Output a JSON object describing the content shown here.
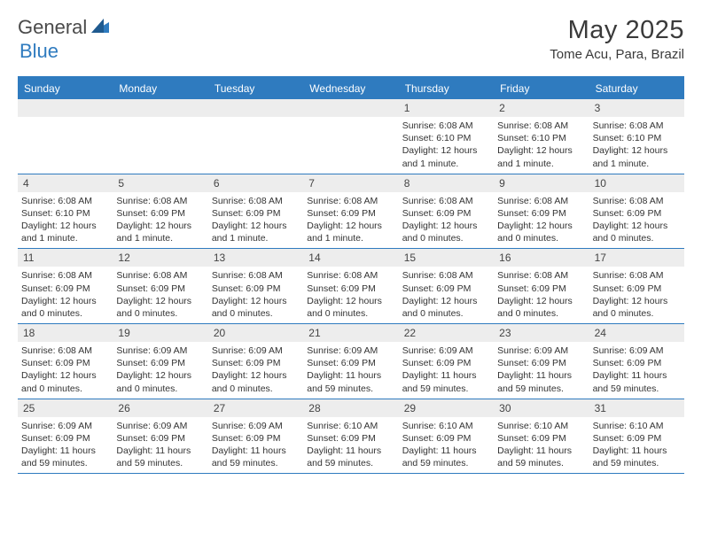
{
  "logo": {
    "text1": "General",
    "text2": "Blue",
    "color1": "#4a4a4a",
    "color2": "#2f7bbf"
  },
  "title": "May 2025",
  "location": "Tome Acu, Para, Brazil",
  "colors": {
    "header_bg": "#2f7bbf",
    "header_text": "#ffffff",
    "daynum_bg": "#ededed",
    "daynum_text": "#444444",
    "body_text": "#333333",
    "border": "#2f7bbf"
  },
  "fonts": {
    "title_size": 29,
    "location_size": 15,
    "dow_size": 12,
    "daynum_size": 12,
    "body_size": 10.5
  },
  "dow": [
    "Sunday",
    "Monday",
    "Tuesday",
    "Wednesday",
    "Thursday",
    "Friday",
    "Saturday"
  ],
  "weeks": [
    [
      {
        "n": "",
        "sunrise": "",
        "sunset": "",
        "daylight": ""
      },
      {
        "n": "",
        "sunrise": "",
        "sunset": "",
        "daylight": ""
      },
      {
        "n": "",
        "sunrise": "",
        "sunset": "",
        "daylight": ""
      },
      {
        "n": "",
        "sunrise": "",
        "sunset": "",
        "daylight": ""
      },
      {
        "n": "1",
        "sunrise": "Sunrise: 6:08 AM",
        "sunset": "Sunset: 6:10 PM",
        "daylight": "Daylight: 12 hours and 1 minute."
      },
      {
        "n": "2",
        "sunrise": "Sunrise: 6:08 AM",
        "sunset": "Sunset: 6:10 PM",
        "daylight": "Daylight: 12 hours and 1 minute."
      },
      {
        "n": "3",
        "sunrise": "Sunrise: 6:08 AM",
        "sunset": "Sunset: 6:10 PM",
        "daylight": "Daylight: 12 hours and 1 minute."
      }
    ],
    [
      {
        "n": "4",
        "sunrise": "Sunrise: 6:08 AM",
        "sunset": "Sunset: 6:10 PM",
        "daylight": "Daylight: 12 hours and 1 minute."
      },
      {
        "n": "5",
        "sunrise": "Sunrise: 6:08 AM",
        "sunset": "Sunset: 6:09 PM",
        "daylight": "Daylight: 12 hours and 1 minute."
      },
      {
        "n": "6",
        "sunrise": "Sunrise: 6:08 AM",
        "sunset": "Sunset: 6:09 PM",
        "daylight": "Daylight: 12 hours and 1 minute."
      },
      {
        "n": "7",
        "sunrise": "Sunrise: 6:08 AM",
        "sunset": "Sunset: 6:09 PM",
        "daylight": "Daylight: 12 hours and 1 minute."
      },
      {
        "n": "8",
        "sunrise": "Sunrise: 6:08 AM",
        "sunset": "Sunset: 6:09 PM",
        "daylight": "Daylight: 12 hours and 0 minutes."
      },
      {
        "n": "9",
        "sunrise": "Sunrise: 6:08 AM",
        "sunset": "Sunset: 6:09 PM",
        "daylight": "Daylight: 12 hours and 0 minutes."
      },
      {
        "n": "10",
        "sunrise": "Sunrise: 6:08 AM",
        "sunset": "Sunset: 6:09 PM",
        "daylight": "Daylight: 12 hours and 0 minutes."
      }
    ],
    [
      {
        "n": "11",
        "sunrise": "Sunrise: 6:08 AM",
        "sunset": "Sunset: 6:09 PM",
        "daylight": "Daylight: 12 hours and 0 minutes."
      },
      {
        "n": "12",
        "sunrise": "Sunrise: 6:08 AM",
        "sunset": "Sunset: 6:09 PM",
        "daylight": "Daylight: 12 hours and 0 minutes."
      },
      {
        "n": "13",
        "sunrise": "Sunrise: 6:08 AM",
        "sunset": "Sunset: 6:09 PM",
        "daylight": "Daylight: 12 hours and 0 minutes."
      },
      {
        "n": "14",
        "sunrise": "Sunrise: 6:08 AM",
        "sunset": "Sunset: 6:09 PM",
        "daylight": "Daylight: 12 hours and 0 minutes."
      },
      {
        "n": "15",
        "sunrise": "Sunrise: 6:08 AM",
        "sunset": "Sunset: 6:09 PM",
        "daylight": "Daylight: 12 hours and 0 minutes."
      },
      {
        "n": "16",
        "sunrise": "Sunrise: 6:08 AM",
        "sunset": "Sunset: 6:09 PM",
        "daylight": "Daylight: 12 hours and 0 minutes."
      },
      {
        "n": "17",
        "sunrise": "Sunrise: 6:08 AM",
        "sunset": "Sunset: 6:09 PM",
        "daylight": "Daylight: 12 hours and 0 minutes."
      }
    ],
    [
      {
        "n": "18",
        "sunrise": "Sunrise: 6:08 AM",
        "sunset": "Sunset: 6:09 PM",
        "daylight": "Daylight: 12 hours and 0 minutes."
      },
      {
        "n": "19",
        "sunrise": "Sunrise: 6:09 AM",
        "sunset": "Sunset: 6:09 PM",
        "daylight": "Daylight: 12 hours and 0 minutes."
      },
      {
        "n": "20",
        "sunrise": "Sunrise: 6:09 AM",
        "sunset": "Sunset: 6:09 PM",
        "daylight": "Daylight: 12 hours and 0 minutes."
      },
      {
        "n": "21",
        "sunrise": "Sunrise: 6:09 AM",
        "sunset": "Sunset: 6:09 PM",
        "daylight": "Daylight: 11 hours and 59 minutes."
      },
      {
        "n": "22",
        "sunrise": "Sunrise: 6:09 AM",
        "sunset": "Sunset: 6:09 PM",
        "daylight": "Daylight: 11 hours and 59 minutes."
      },
      {
        "n": "23",
        "sunrise": "Sunrise: 6:09 AM",
        "sunset": "Sunset: 6:09 PM",
        "daylight": "Daylight: 11 hours and 59 minutes."
      },
      {
        "n": "24",
        "sunrise": "Sunrise: 6:09 AM",
        "sunset": "Sunset: 6:09 PM",
        "daylight": "Daylight: 11 hours and 59 minutes."
      }
    ],
    [
      {
        "n": "25",
        "sunrise": "Sunrise: 6:09 AM",
        "sunset": "Sunset: 6:09 PM",
        "daylight": "Daylight: 11 hours and 59 minutes."
      },
      {
        "n": "26",
        "sunrise": "Sunrise: 6:09 AM",
        "sunset": "Sunset: 6:09 PM",
        "daylight": "Daylight: 11 hours and 59 minutes."
      },
      {
        "n": "27",
        "sunrise": "Sunrise: 6:09 AM",
        "sunset": "Sunset: 6:09 PM",
        "daylight": "Daylight: 11 hours and 59 minutes."
      },
      {
        "n": "28",
        "sunrise": "Sunrise: 6:10 AM",
        "sunset": "Sunset: 6:09 PM",
        "daylight": "Daylight: 11 hours and 59 minutes."
      },
      {
        "n": "29",
        "sunrise": "Sunrise: 6:10 AM",
        "sunset": "Sunset: 6:09 PM",
        "daylight": "Daylight: 11 hours and 59 minutes."
      },
      {
        "n": "30",
        "sunrise": "Sunrise: 6:10 AM",
        "sunset": "Sunset: 6:09 PM",
        "daylight": "Daylight: 11 hours and 59 minutes."
      },
      {
        "n": "31",
        "sunrise": "Sunrise: 6:10 AM",
        "sunset": "Sunset: 6:09 PM",
        "daylight": "Daylight: 11 hours and 59 minutes."
      }
    ]
  ]
}
